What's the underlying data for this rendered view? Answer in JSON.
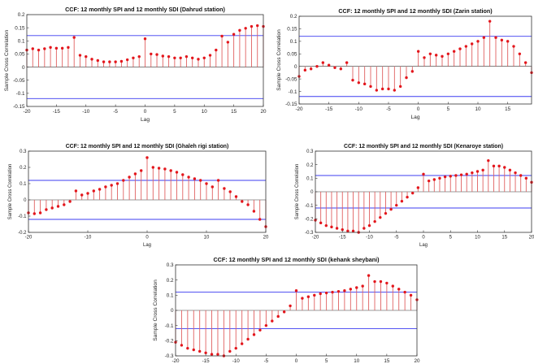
{
  "figure": {
    "style": {
      "stem_color": "#e06060",
      "marker_color": "#e3161c",
      "bound_color": "#3c3cf0",
      "frame_color": "#333333",
      "background": "#ffffff"
    },
    "shared": {
      "xlabel": "Lag",
      "ylabel": "Sample Cross Correlation"
    }
  },
  "chart_data": [
    {
      "type": "stem",
      "title": "CCF: 12 monthly SPI and 12 monthly SDI (Dahrud station)",
      "xlabel": "Lag",
      "ylabel": "Sample Cross Correlation",
      "xlim": [
        -20,
        20
      ],
      "ylim": [
        -0.15,
        0.2
      ],
      "xticks": [
        -20,
        -15,
        -10,
        -5,
        0,
        5,
        10,
        15,
        20
      ],
      "xtick_labels": [
        "-20",
        "-15",
        "-10",
        "-5",
        "0",
        "5",
        "10",
        "15",
        "20"
      ],
      "yticks": [
        -0.15,
        -0.1,
        -0.05,
        0,
        0.05,
        0.1,
        0.15,
        0.2
      ],
      "ytick_labels": [
        "-0.15",
        "-0.1",
        "-0.05",
        "0",
        "0.05",
        "0.1",
        "0.15",
        "0.2"
      ],
      "confidence_bounds": [
        0.12,
        -0.12
      ],
      "lags": [
        -20,
        -19,
        -18,
        -17,
        -16,
        -15,
        -14,
        -13,
        -12,
        -11,
        -10,
        -9,
        -8,
        -7,
        -6,
        -5,
        -4,
        -3,
        -2,
        -1,
        0,
        1,
        2,
        3,
        4,
        5,
        6,
        7,
        8,
        9,
        10,
        11,
        12,
        13,
        14,
        15,
        16,
        17,
        18,
        19,
        20
      ],
      "values": [
        0.065,
        0.07,
        0.065,
        0.07,
        0.075,
        0.072,
        0.072,
        0.075,
        0.113,
        0.045,
        0.04,
        0.03,
        0.025,
        0.02,
        0.02,
        0.02,
        0.022,
        0.028,
        0.035,
        0.04,
        0.108,
        0.05,
        0.048,
        0.042,
        0.04,
        0.035,
        0.035,
        0.04,
        0.035,
        0.03,
        0.035,
        0.045,
        0.065,
        0.118,
        0.095,
        0.125,
        0.14,
        0.148,
        0.155,
        0.158,
        0.155
      ]
    },
    {
      "type": "stem",
      "title": "CCF: 12 monthly SPI and 12 monthly SDI (Zarin station)",
      "xlabel": "Lag",
      "ylabel": "Sample Cross Correlation",
      "xlim": [
        -20,
        19
      ],
      "ylim": [
        -0.15,
        0.2
      ],
      "xticks": [
        -20,
        -15,
        -10,
        -5,
        0,
        5,
        10,
        15
      ],
      "xtick_labels": [
        "-20",
        "-15",
        "-10",
        "-5",
        "0",
        "5",
        "10",
        "15"
      ],
      "yticks": [
        -0.15,
        -0.1,
        -0.05,
        0,
        0.05,
        0.1,
        0.15,
        0.2
      ],
      "ytick_labels": [
        "-0.15",
        "-0.1",
        "-0.05",
        "0",
        "0.05",
        "0.1",
        "0.15",
        "0.2"
      ],
      "confidence_bounds": [
        0.12,
        -0.12
      ],
      "lags": [
        -20,
        -19,
        -18,
        -17,
        -16,
        -15,
        -14,
        -13,
        -12,
        -11,
        -10,
        -9,
        -8,
        -7,
        -6,
        -5,
        -4,
        -3,
        -2,
        -1,
        0,
        1,
        2,
        3,
        4,
        5,
        6,
        7,
        8,
        9,
        10,
        11,
        12,
        13,
        14,
        15,
        16,
        17,
        18,
        19
      ],
      "values": [
        -0.04,
        -0.015,
        -0.01,
        0.0,
        0.015,
        0.005,
        -0.005,
        -0.01,
        0.015,
        -0.055,
        -0.065,
        -0.07,
        -0.08,
        -0.095,
        -0.09,
        -0.09,
        -0.095,
        -0.08,
        -0.045,
        -0.02,
        0.06,
        0.035,
        0.05,
        0.045,
        0.04,
        0.05,
        0.06,
        0.07,
        0.08,
        0.09,
        0.1,
        0.115,
        0.18,
        0.115,
        0.105,
        0.1,
        0.08,
        0.05,
        0.015,
        -0.025
      ]
    },
    {
      "type": "stem",
      "title": "CCF: 12 monthly SPI and 12 monthly SDI (Ghaleh rigi station)",
      "xlabel": "Lag",
      "ylabel": "Sample Cross Correlation",
      "xlim": [
        -20,
        20
      ],
      "ylim": [
        -0.2,
        0.3
      ],
      "xticks": [
        -20,
        -10,
        0,
        10,
        20
      ],
      "xtick_labels": [
        "-20",
        "-10",
        "0",
        "10",
        "20"
      ],
      "yticks": [
        -0.2,
        -0.1,
        0,
        0.1,
        0.2,
        0.3
      ],
      "ytick_labels": [
        "-0.2",
        "-0.1",
        "0",
        "0.1",
        "0.2",
        "0.3"
      ],
      "confidence_bounds": [
        0.12,
        -0.12
      ],
      "lags": [
        -20,
        -19,
        -18,
        -17,
        -16,
        -15,
        -14,
        -13,
        -12,
        -11,
        -10,
        -9,
        -8,
        -7,
        -6,
        -5,
        -4,
        -3,
        -2,
        -1,
        0,
        1,
        2,
        3,
        4,
        5,
        6,
        7,
        8,
        9,
        10,
        11,
        12,
        13,
        14,
        15,
        16,
        17,
        18,
        19,
        20
      ],
      "values": [
        -0.08,
        -0.085,
        -0.08,
        -0.06,
        -0.05,
        -0.04,
        -0.03,
        -0.01,
        0.055,
        0.03,
        0.04,
        0.055,
        0.065,
        0.08,
        0.09,
        0.1,
        0.12,
        0.14,
        0.16,
        0.18,
        0.26,
        0.2,
        0.195,
        0.19,
        0.18,
        0.17,
        0.155,
        0.14,
        0.13,
        0.12,
        0.1,
        0.08,
        0.12,
        0.07,
        0.05,
        0.02,
        -0.01,
        -0.03,
        -0.07,
        -0.12,
        -0.165
      ]
    },
    {
      "type": "stem",
      "title": "CCF: 12 monthly SPI and 12 monthly SDI (Kenaroye station)",
      "xlabel": "Lag",
      "ylabel": "Sample Cross Correlation",
      "xlim": [
        -20,
        20
      ],
      "ylim": [
        -0.3,
        0.3
      ],
      "xticks": [
        -20,
        -15,
        -10,
        -5,
        0,
        5,
        10,
        15,
        20
      ],
      "xtick_labels": [
        "-20",
        "-15",
        "-10",
        "-5",
        "0",
        "5",
        "10",
        "15",
        "20"
      ],
      "yticks": [
        -0.3,
        -0.2,
        -0.1,
        0,
        0.1,
        0.2,
        0.3
      ],
      "ytick_labels": [
        "-0.3",
        "-0.2",
        "-0.1",
        "0",
        "0.1",
        "0.2",
        "0.3"
      ],
      "confidence_bounds": [
        0.12,
        -0.12
      ],
      "lags": [
        -20,
        -19,
        -18,
        -17,
        -16,
        -15,
        -14,
        -13,
        -12,
        -11,
        -10,
        -9,
        -8,
        -7,
        -6,
        -5,
        -4,
        -3,
        -2,
        -1,
        0,
        1,
        2,
        3,
        4,
        5,
        6,
        7,
        8,
        9,
        10,
        11,
        12,
        13,
        14,
        15,
        16,
        17,
        18,
        19,
        20
      ],
      "values": [
        -0.21,
        -0.23,
        -0.25,
        -0.26,
        -0.27,
        -0.28,
        -0.29,
        -0.29,
        -0.3,
        -0.27,
        -0.25,
        -0.22,
        -0.19,
        -0.16,
        -0.13,
        -0.1,
        -0.07,
        -0.04,
        -0.01,
        0.03,
        0.13,
        0.08,
        0.09,
        0.1,
        0.11,
        0.115,
        0.12,
        0.125,
        0.13,
        0.14,
        0.15,
        0.16,
        0.23,
        0.19,
        0.19,
        0.18,
        0.16,
        0.14,
        0.12,
        0.1,
        0.07
      ]
    },
    {
      "type": "stem",
      "title": "CCF: 12 monthly SPI and 12 monthly SDI (kehank sheybani)",
      "xlabel": "Lag",
      "ylabel": "Sample Cross Correlation",
      "xlim": [
        -20,
        20
      ],
      "ylim": [
        -0.3,
        0.3
      ],
      "xticks": [
        -20,
        -15,
        -10,
        -5,
        0,
        5,
        10,
        15,
        20
      ],
      "xtick_labels": [
        "-20",
        "-15",
        "-10",
        "-5",
        "0",
        "5",
        "10",
        "15",
        "20"
      ],
      "yticks": [
        -0.3,
        -0.2,
        -0.1,
        0,
        0.1,
        0.2,
        0.3
      ],
      "ytick_labels": [
        "-0.3",
        "-0.2",
        "-0.1",
        "0",
        "0.1",
        "0.2",
        "0.3"
      ],
      "confidence_bounds": [
        0.12,
        -0.12
      ],
      "lags": [
        -20,
        -19,
        -18,
        -17,
        -16,
        -15,
        -14,
        -13,
        -12,
        -11,
        -10,
        -9,
        -8,
        -7,
        -6,
        -5,
        -4,
        -3,
        -2,
        -1,
        0,
        1,
        2,
        3,
        4,
        5,
        6,
        7,
        8,
        9,
        10,
        11,
        12,
        13,
        14,
        15,
        16,
        17,
        18,
        19,
        20
      ],
      "values": [
        -0.21,
        -0.23,
        -0.25,
        -0.26,
        -0.27,
        -0.28,
        -0.29,
        -0.29,
        -0.3,
        -0.27,
        -0.25,
        -0.22,
        -0.19,
        -0.16,
        -0.13,
        -0.1,
        -0.07,
        -0.04,
        -0.01,
        0.03,
        0.13,
        0.08,
        0.09,
        0.1,
        0.11,
        0.115,
        0.12,
        0.125,
        0.13,
        0.14,
        0.15,
        0.16,
        0.23,
        0.19,
        0.19,
        0.18,
        0.16,
        0.14,
        0.12,
        0.1,
        0.07
      ]
    }
  ]
}
